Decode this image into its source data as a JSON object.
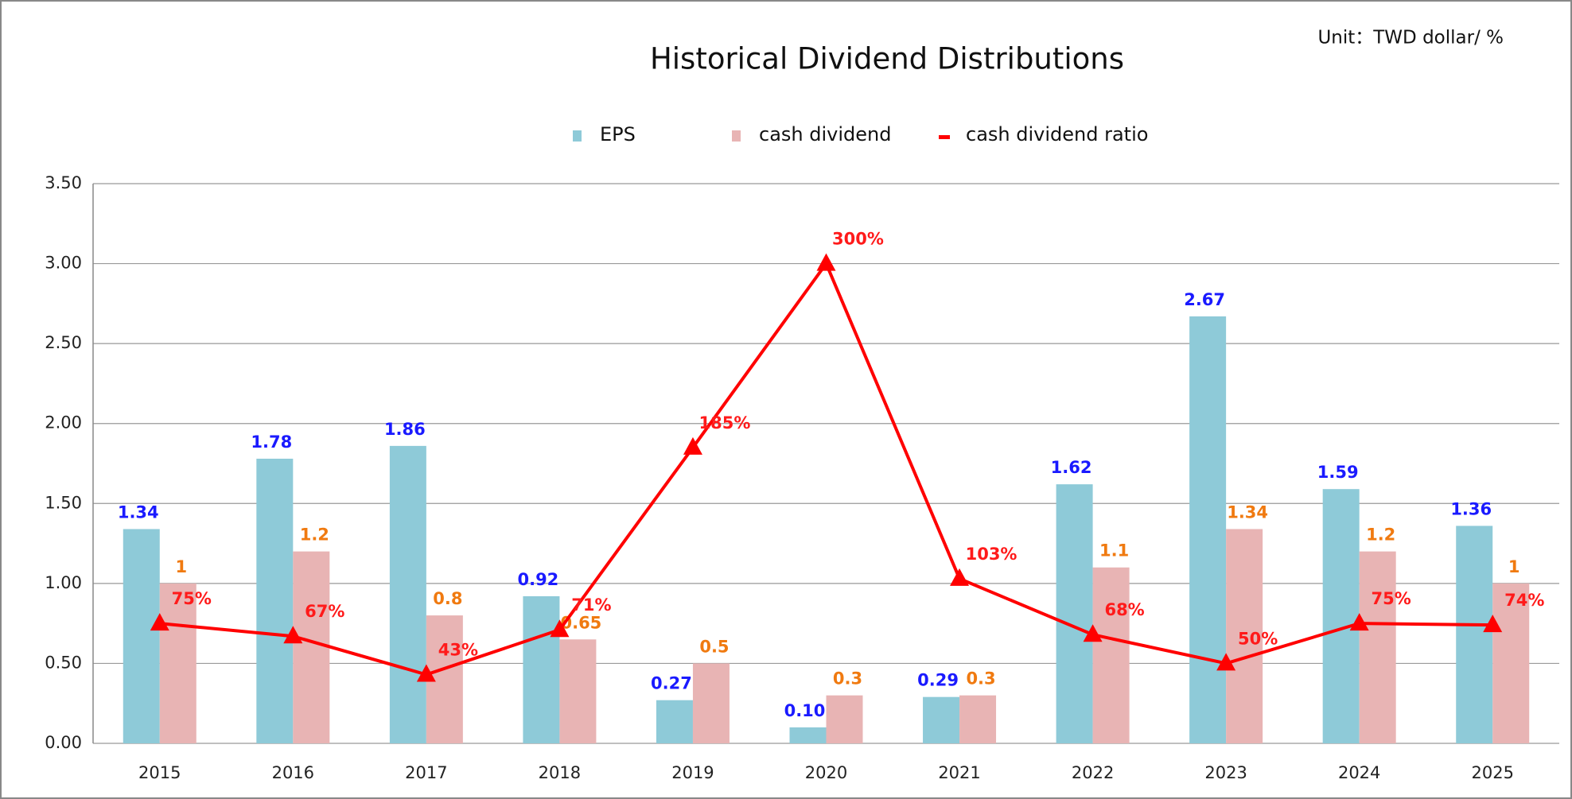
{
  "chart_data": {
    "type": "bar",
    "title": "Historical Dividend Distributions",
    "subtitle": "Unit：TWD  dollar/ %",
    "categories": [
      "2015",
      "2016",
      "2017",
      "2018",
      "2019",
      "2020",
      "2021",
      "2022",
      "2023",
      "2024",
      "2025"
    ],
    "series": [
      {
        "name": "EPS",
        "type": "bar",
        "color": "#8ecad8",
        "label_color": "#1a1aff",
        "values": [
          1.34,
          1.78,
          1.86,
          0.92,
          0.27,
          0.1,
          0.29,
          1.62,
          2.67,
          1.59,
          1.36
        ],
        "value_labels": [
          "1.34",
          "1.78",
          "1.86",
          "0.92",
          "0.27",
          "0.10",
          "0.29",
          "1.62",
          "2.67",
          "1.59",
          "1.36"
        ]
      },
      {
        "name": "cash dividend",
        "type": "bar",
        "color": "#e8b4b4",
        "label_color": "#f07a10",
        "values": [
          1,
          1.2,
          0.8,
          0.65,
          0.5,
          0.3,
          0.3,
          1.1,
          1.34,
          1.2,
          1
        ]
      },
      {
        "name": "cash dividend  ratio",
        "type": "line",
        "color": "#ff0000",
        "label_color": "#ff1a1a",
        "values": [
          0.75,
          0.67,
          0.43,
          0.71,
          1.85,
          3.0,
          1.03,
          0.68,
          0.5,
          0.75,
          0.74
        ],
        "value_labels": [
          "75%",
          "67%",
          "43%",
          "71%",
          "185%",
          "300%",
          "103%",
          "68%",
          "50%",
          "75%",
          "74%"
        ]
      }
    ],
    "ylim": [
      0,
      3.5
    ],
    "yticks": [
      {
        "value": 0,
        "label": "0.00"
      },
      {
        "value": 0.5,
        "label": "0.50"
      },
      {
        "value": 1,
        "label": "1.00"
      },
      {
        "value": 1.5,
        "label": "1.50"
      },
      {
        "value": 2,
        "label": "2.00"
      },
      {
        "value": 2.5,
        "label": "2.50"
      },
      {
        "value": 3,
        "label": "3.00"
      },
      {
        "value": 3.5,
        "label": "3.50"
      }
    ],
    "grid": true,
    "legend": "top"
  }
}
